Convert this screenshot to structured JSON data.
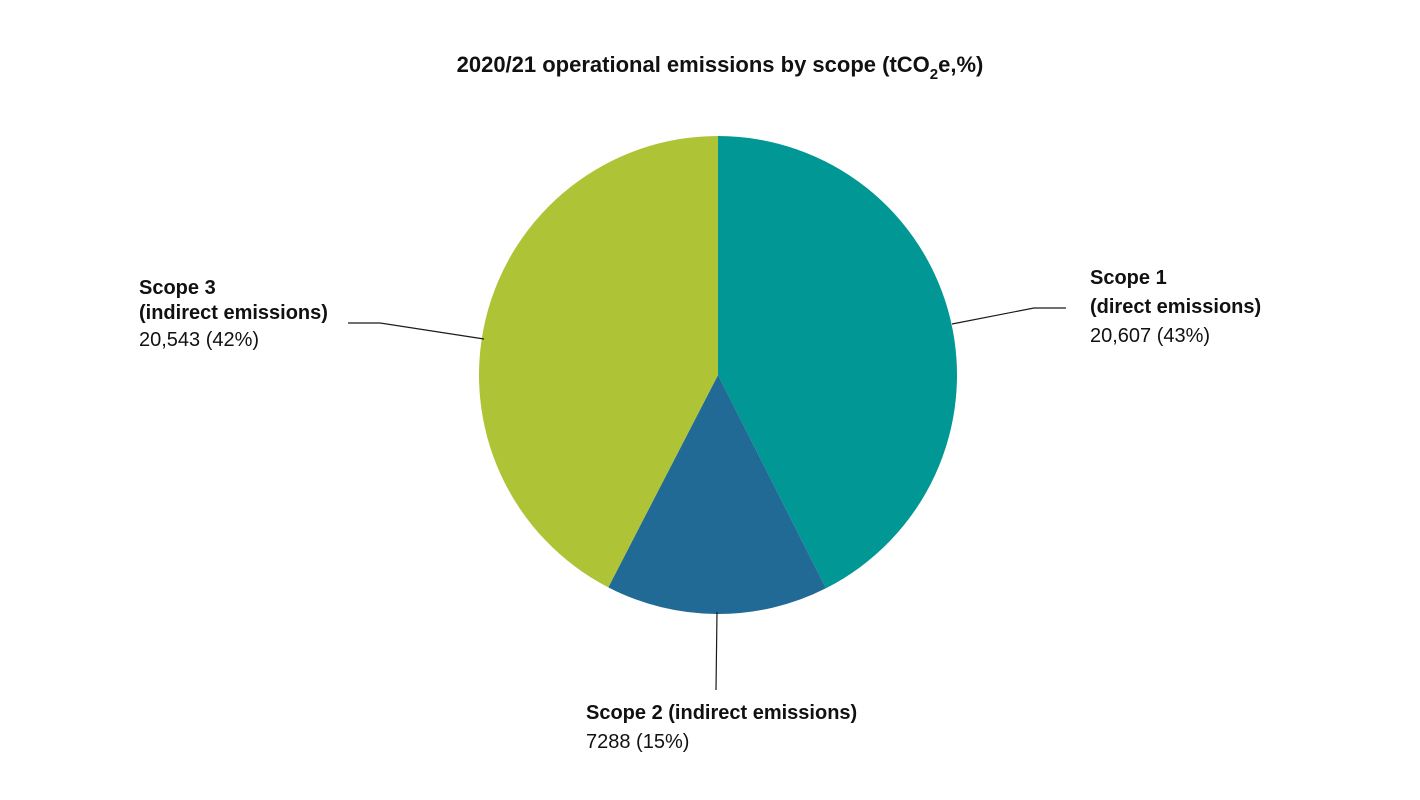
{
  "chart_data": {
    "type": "pie",
    "title": {
      "prefix": "2020/21 operational emissions by scope (tCO",
      "subscript": "2",
      "suffix": "e,%)"
    },
    "slices": [
      {
        "name": "Scope 1",
        "name_line2": "(direct emissions)",
        "value": 20607,
        "value_label": "20,607 (43%)",
        "percent": 43,
        "color": "#009794"
      },
      {
        "name": "Scope 2 (indirect emissions)",
        "name_line2": "",
        "value": 7288,
        "value_label": "7288 (15%)",
        "percent": 15,
        "color": "#226a96"
      },
      {
        "name": "Scope 3",
        "name_line2": "(indirect emissions)",
        "value": 20543,
        "value_label": "20,543 (42%)",
        "percent": 42,
        "color": "#afc337"
      }
    ],
    "start_angle": "12 o'clock",
    "direction": "clockwise",
    "legend": "none"
  }
}
